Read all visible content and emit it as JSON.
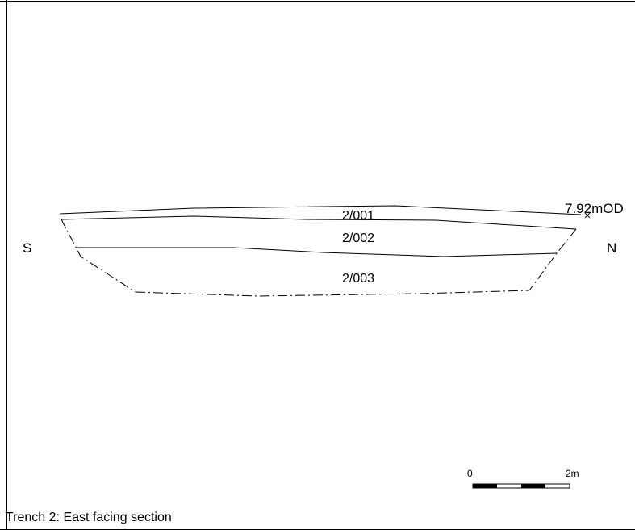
{
  "section": {
    "left_label": "S",
    "right_label": "N",
    "datum_label": "7.92mOD",
    "contexts": [
      "2/001",
      "2/002",
      "2/003"
    ]
  },
  "scale_bar": {
    "start_label": "0",
    "end_label": "2m"
  },
  "caption": "Trench 2: East facing section",
  "colors": {
    "line": "#000000",
    "background": "#ffffff"
  }
}
